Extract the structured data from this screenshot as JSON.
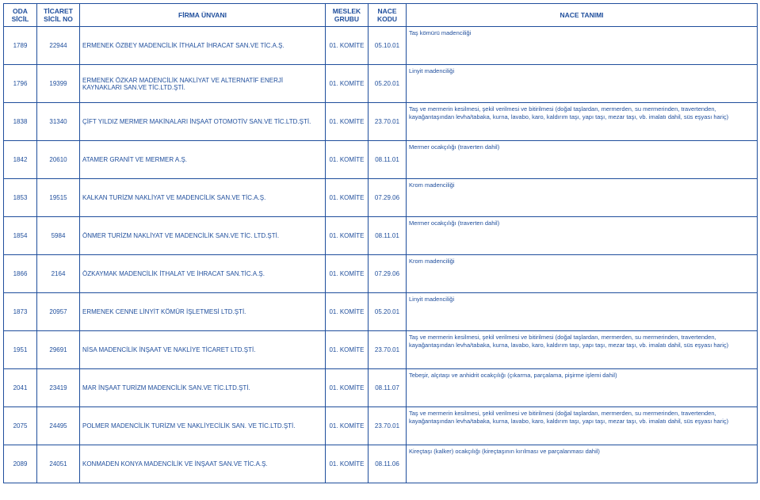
{
  "headers": {
    "oda": "ODA SİCİL",
    "ticaret": "TİCARET SİCİL NO",
    "firma": "FİRMA ÜNVANI",
    "meslek": "MESLEK GRUBU",
    "nace": "NACE KODU",
    "tanim": "NACE TANIMI"
  },
  "meslek_value": "01. KOMİTE",
  "rows": [
    {
      "oda": "1789",
      "ticaret": "22944",
      "firma": "ERMENEK ÖZBEY MADENCİLİK İTHALAT İHRACAT SAN.VE TİC.A.Ş.",
      "nace": "05.10.01",
      "tanim": "Taş kömürü madenciliği"
    },
    {
      "oda": "1796",
      "ticaret": "19399",
      "firma": "ERMENEK ÖZKAR MADENCİLİK NAKLİYAT VE ALTERNATİF ENERJİ KAYNAKLARI SAN.VE TİC.LTD.ŞTİ.",
      "nace": "05.20.01",
      "tanim": "Linyit madenciliği"
    },
    {
      "oda": "1838",
      "ticaret": "31340",
      "firma": "ÇİFT YILDIZ MERMER MAKİNALARI İNŞAAT OTOMOTİV SAN.VE TİC.LTD.ŞTİ.",
      "nace": "23.70.01",
      "tanim": "Taş ve mermerin kesilmesi, şekil verilmesi ve bitirilmesi (doğal taşlardan, mermerden, su mermerinden, travertenden, kayağantaşından levha/tabaka, kurna, lavabo, karo, kaldırım taşı, yapı taşı, mezar taşı, vb. imalatı dahil, süs eşyası hariç)"
    },
    {
      "oda": "1842",
      "ticaret": "20610",
      "firma": "ATAMER GRANİT VE MERMER A.Ş.",
      "nace": "08.11.01",
      "tanim": "Mermer ocakçılığı (traverten dahil)"
    },
    {
      "oda": "1853",
      "ticaret": "19515",
      "firma": "KALKAN TURİZM NAKLİYAT VE MADENCİLİK SAN.VE TİC.A.Ş.",
      "nace": "07.29.06",
      "tanim": "Krom madenciliği"
    },
    {
      "oda": "1854",
      "ticaret": "5984",
      "firma": "ÖNMER TURİZM NAKLİYAT VE MADENCİLİK SAN.VE TİC. LTD.ŞTİ.",
      "nace": "08.11.01",
      "tanim": "Mermer ocakçılığı (traverten dahil)"
    },
    {
      "oda": "1866",
      "ticaret": "2164",
      "firma": "ÖZKAYMAK MADENCİLİK İTHALAT VE İHRACAT SAN.TİC.A.Ş.",
      "nace": "07.29.06",
      "tanim": "Krom madenciliği"
    },
    {
      "oda": "1873",
      "ticaret": "20957",
      "firma": "ERMENEK CENNE LİNYİT KÖMÜR İŞLETMESİ LTD.ŞTİ.",
      "nace": "05.20.01",
      "tanim": "Linyit madenciliği"
    },
    {
      "oda": "1951",
      "ticaret": "29691",
      "firma": "NİSA MADENCİLİK İNŞAAT VE NAKLİYE TİCARET LTD.ŞTİ.",
      "nace": "23.70.01",
      "tanim": "Taş ve mermerin kesilmesi, şekil verilmesi ve bitirilmesi (doğal taşlardan, mermerden, su mermerinden, travertenden, kayağantaşından levha/tabaka, kurna, lavabo, karo, kaldırım taşı, yapı taşı, mezar taşı, vb. imalatı dahil, süs eşyası hariç)"
    },
    {
      "oda": "2041",
      "ticaret": "23419",
      "firma": "MAR İNŞAAT TURİZM MADENCİLİK SAN.VE TİC.LTD.ŞTİ.",
      "nace": "08.11.07",
      "tanim": "Tebeşir, alçıtaşı ve anhidrit ocakçılığı (çıkarma, parçalama, pişirme işlemi dahil)"
    },
    {
      "oda": "2075",
      "ticaret": "24495",
      "firma": "POLMER MADENCİLİK TURİZM VE NAKLİYECİLİK SAN. VE TİC.LTD.ŞTİ.",
      "nace": "23.70.01",
      "tanim": "Taş ve mermerin kesilmesi, şekil verilmesi ve bitirilmesi (doğal taşlardan, mermerden, su mermerinden, travertenden, kayağantaşından levha/tabaka, kurna, lavabo, karo, kaldırım taşı, yapı taşı, mezar taşı, vb. imalatı dahil, süs eşyası hariç)"
    },
    {
      "oda": "2089",
      "ticaret": "24051",
      "firma": "KONMADEN KONYA MADENCİLİK VE İNŞAAT SAN.VE TİC.A.Ş.",
      "nace": "08.11.06",
      "tanim": "Kireçtaşı (kalker) ocakçılığı (kireçtaşının kırılması ve parçalanması dahil)"
    }
  ]
}
